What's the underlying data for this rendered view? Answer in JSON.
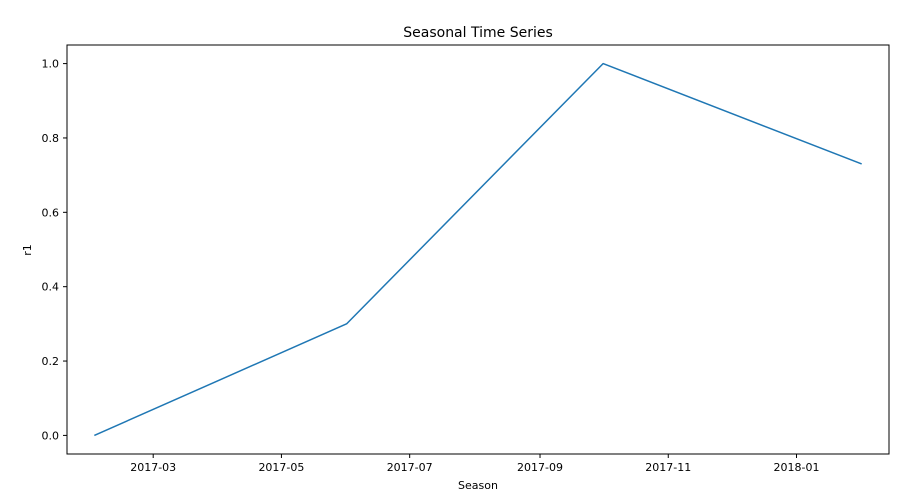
{
  "chart_data": {
    "type": "line",
    "title": "Seasonal Time Series",
    "xlabel": "Season",
    "ylabel": "r1",
    "x_type": "date",
    "xlim": [
      "2017-01-19",
      "2018-02-14"
    ],
    "ylim": [
      -0.05,
      1.05
    ],
    "x_ticks": [
      {
        "date": "2017-03-01",
        "label": "2017-03"
      },
      {
        "date": "2017-05-01",
        "label": "2017-05"
      },
      {
        "date": "2017-07-01",
        "label": "2017-07"
      },
      {
        "date": "2017-09-01",
        "label": "2017-09"
      },
      {
        "date": "2017-11-01",
        "label": "2017-11"
      },
      {
        "date": "2018-01-01",
        "label": "2018-01"
      }
    ],
    "y_ticks": [
      {
        "value": 0.0,
        "label": "0.0"
      },
      {
        "value": 0.2,
        "label": "0.2"
      },
      {
        "value": 0.4,
        "label": "0.4"
      },
      {
        "value": 0.6,
        "label": "0.6"
      },
      {
        "value": 0.8,
        "label": "0.8"
      },
      {
        "value": 1.0,
        "label": "1.0"
      }
    ],
    "grid": false,
    "series": [
      {
        "color": "#1f77b4",
        "points": [
          {
            "x": "2017-02-01",
            "y": 0.0
          },
          {
            "x": "2017-06-01",
            "y": 0.3
          },
          {
            "x": "2017-10-01",
            "y": 1.0
          },
          {
            "x": "2018-02-01",
            "y": 0.73
          }
        ]
      }
    ]
  }
}
